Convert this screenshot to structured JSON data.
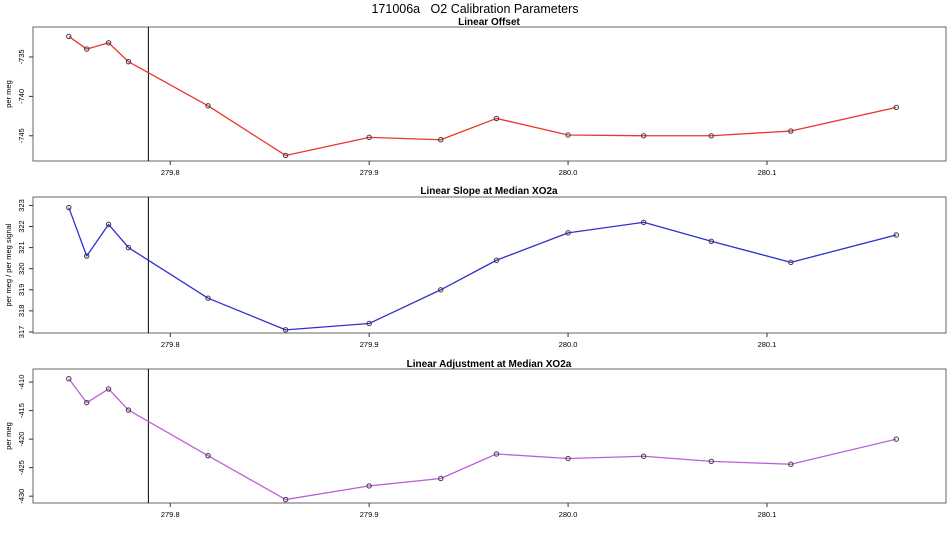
{
  "figure": {
    "title": "171006a   O2 Calibration Parameters",
    "background": "#ffffff"
  },
  "colors": {
    "box": "#666666",
    "tick": "#333333",
    "tick_label": "#000000",
    "marker_outline": "#3d3d3d",
    "vline": "#000000"
  },
  "chart_data": [
    {
      "type": "line",
      "title": "Linear Offset",
      "ylabel": "per meg",
      "color": "#ea372b",
      "marker": "open-circle",
      "grid": false,
      "legend": "none",
      "vline_x": 279.789,
      "xlim": [
        279.731,
        280.19
      ],
      "ylim": [
        -748.2,
        -731.2
      ],
      "xticks": [
        279.8,
        279.9,
        280.0,
        280.1
      ],
      "xtick_labels": [
        "279.8",
        "279.9",
        "280.0",
        "280.1"
      ],
      "yticks": [
        -745,
        -740,
        -735
      ],
      "ytick_labels": [
        "-745",
        "-740",
        "-735"
      ],
      "x": [
        279.749,
        279.758,
        279.769,
        279.779,
        279.819,
        279.858,
        279.9,
        279.936,
        279.964,
        280.0,
        280.038,
        280.072,
        280.112,
        280.165
      ],
      "y": [
        -732.4,
        -734.0,
        -733.2,
        -735.6,
        -741.2,
        -747.5,
        -745.2,
        -745.5,
        -742.8,
        -744.9,
        -745.0,
        -745.0,
        -744.4,
        -741.4
      ]
    },
    {
      "type": "line",
      "title": "Linear Slope at Median XO2a",
      "ylabel": "per meg / per meg signal",
      "color": "#3030cf",
      "marker": "open-circle",
      "grid": false,
      "legend": "none",
      "vline_x": 279.789,
      "xlim": [
        279.731,
        280.19
      ],
      "ylim": [
        316.95,
        323.4
      ],
      "xticks": [
        279.8,
        279.9,
        280.0,
        280.1
      ],
      "xtick_labels": [
        "279.8",
        "279.9",
        "280.0",
        "280.1"
      ],
      "yticks": [
        317,
        318,
        319,
        320,
        321,
        322,
        323
      ],
      "ytick_labels": [
        "317",
        "318",
        "319",
        "320",
        "321",
        "322",
        "323"
      ],
      "x": [
        279.749,
        279.758,
        279.769,
        279.779,
        279.819,
        279.858,
        279.9,
        279.936,
        279.964,
        280.0,
        280.038,
        280.072,
        280.112,
        280.165
      ],
      "y": [
        322.9,
        320.6,
        322.1,
        321.0,
        318.6,
        317.1,
        317.4,
        319.0,
        320.4,
        321.7,
        322.2,
        321.3,
        320.3,
        321.6
      ]
    },
    {
      "type": "line",
      "title": "Linear Adjustment at Median XO2a",
      "ylabel": "per meg",
      "color": "#bd5fd8",
      "marker": "open-circle",
      "grid": false,
      "legend": "none",
      "vline_x": 279.789,
      "xlim": [
        279.731,
        280.19
      ],
      "ylim": [
        -431.2,
        -407.7
      ],
      "xticks": [
        279.8,
        279.9,
        280.0,
        280.1
      ],
      "xtick_labels": [
        "279.8",
        "279.9",
        "280.0",
        "280.1"
      ],
      "yticks": [
        -430,
        -425,
        -420,
        -415,
        -410
      ],
      "ytick_labels": [
        "-430",
        "-425",
        "-420",
        "-415",
        "-410"
      ],
      "x": [
        279.749,
        279.758,
        279.769,
        279.779,
        279.819,
        279.858,
        279.9,
        279.936,
        279.964,
        280.0,
        280.038,
        280.072,
        280.112,
        280.165
      ],
      "y": [
        -409.4,
        -413.6,
        -411.2,
        -414.9,
        -422.9,
        -430.6,
        -428.2,
        -426.9,
        -422.6,
        -423.4,
        -423.0,
        -423.9,
        -424.4,
        -420.0
      ]
    }
  ]
}
